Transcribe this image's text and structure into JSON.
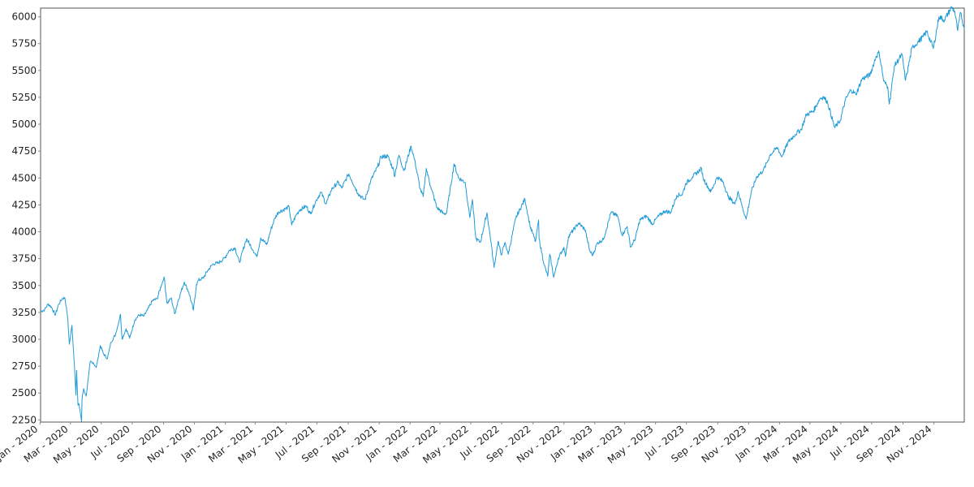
{
  "chart_data": {
    "type": "line",
    "title": "",
    "xlabel": "",
    "ylabel": "",
    "grid": false,
    "legend": "none",
    "x_range": [
      "2020-01-02",
      "2024-12-31"
    ],
    "ylim": [
      2230,
      6080
    ],
    "y_ticks": [
      2250,
      2500,
      2750,
      3000,
      3250,
      3500,
      3750,
      4000,
      4250,
      4500,
      4750,
      5000,
      5250,
      5500,
      5750,
      6000
    ],
    "x_ticks": [
      {
        "date": "2020-01-01",
        "label": "Jan - 2020"
      },
      {
        "date": "2020-03-01",
        "label": "Mar - 2020"
      },
      {
        "date": "2020-05-01",
        "label": "May - 2020"
      },
      {
        "date": "2020-07-01",
        "label": "Jul - 2020"
      },
      {
        "date": "2020-09-01",
        "label": "Sep - 2020"
      },
      {
        "date": "2020-11-01",
        "label": "Nov - 2020"
      },
      {
        "date": "2021-01-01",
        "label": "Jan - 2021"
      },
      {
        "date": "2021-03-01",
        "label": "Mar - 2021"
      },
      {
        "date": "2021-05-01",
        "label": "May - 2021"
      },
      {
        "date": "2021-07-01",
        "label": "Jul - 2021"
      },
      {
        "date": "2021-09-01",
        "label": "Sep - 2021"
      },
      {
        "date": "2021-11-01",
        "label": "Nov - 2021"
      },
      {
        "date": "2022-01-01",
        "label": "Jan - 2022"
      },
      {
        "date": "2022-03-01",
        "label": "Mar - 2022"
      },
      {
        "date": "2022-05-01",
        "label": "May - 2022"
      },
      {
        "date": "2022-07-01",
        "label": "Jul - 2022"
      },
      {
        "date": "2022-09-01",
        "label": "Sep - 2022"
      },
      {
        "date": "2022-11-01",
        "label": "Nov - 2022"
      },
      {
        "date": "2023-01-01",
        "label": "Jan - 2023"
      },
      {
        "date": "2023-03-01",
        "label": "Mar - 2023"
      },
      {
        "date": "2023-05-01",
        "label": "May - 2023"
      },
      {
        "date": "2023-07-01",
        "label": "Jul - 2023"
      },
      {
        "date": "2023-09-01",
        "label": "Sep - 2023"
      },
      {
        "date": "2023-11-01",
        "label": "Nov - 2023"
      },
      {
        "date": "2024-01-01",
        "label": "Jan - 2024"
      },
      {
        "date": "2024-03-01",
        "label": "Mar - 2024"
      },
      {
        "date": "2024-05-01",
        "label": "May - 2024"
      },
      {
        "date": "2024-07-01",
        "label": "Jul - 2024"
      },
      {
        "date": "2024-09-01",
        "label": "Sep - 2024"
      },
      {
        "date": "2024-11-01",
        "label": "Nov - 2024"
      }
    ],
    "series": [
      {
        "color": "#1f9bd7",
        "points": [
          [
            "2020-01-02",
            3258
          ],
          [
            "2020-01-10",
            3275
          ],
          [
            "2020-01-17",
            3330
          ],
          [
            "2020-01-24",
            3296
          ],
          [
            "2020-01-31",
            3225
          ],
          [
            "2020-02-07",
            3328
          ],
          [
            "2020-02-14",
            3380
          ],
          [
            "2020-02-19",
            3386
          ],
          [
            "2020-02-24",
            3226
          ],
          [
            "2020-02-28",
            2954
          ],
          [
            "2020-03-04",
            3130
          ],
          [
            "2020-03-09",
            2746
          ],
          [
            "2020-03-12",
            2480
          ],
          [
            "2020-03-13",
            2711
          ],
          [
            "2020-03-16",
            2386
          ],
          [
            "2020-03-18",
            2398
          ],
          [
            "2020-03-23",
            2237
          ],
          [
            "2020-03-24",
            2447
          ],
          [
            "2020-03-27",
            2541
          ],
          [
            "2020-04-01",
            2470
          ],
          [
            "2020-04-06",
            2663
          ],
          [
            "2020-04-09",
            2790
          ],
          [
            "2020-04-15",
            2783
          ],
          [
            "2020-04-21",
            2737
          ],
          [
            "2020-04-29",
            2940
          ],
          [
            "2020-05-05",
            2868
          ],
          [
            "2020-05-13",
            2820
          ],
          [
            "2020-05-20",
            2972
          ],
          [
            "2020-05-29",
            3044
          ],
          [
            "2020-06-08",
            3232
          ],
          [
            "2020-06-11",
            3002
          ],
          [
            "2020-06-19",
            3098
          ],
          [
            "2020-06-26",
            3009
          ],
          [
            "2020-07-06",
            3179
          ],
          [
            "2020-07-15",
            3226
          ],
          [
            "2020-07-24",
            3215
          ],
          [
            "2020-07-31",
            3271
          ],
          [
            "2020-08-10",
            3360
          ],
          [
            "2020-08-19",
            3375
          ],
          [
            "2020-08-28",
            3508
          ],
          [
            "2020-09-02",
            3580
          ],
          [
            "2020-09-08",
            3332
          ],
          [
            "2020-09-16",
            3385
          ],
          [
            "2020-09-23",
            3237
          ],
          [
            "2020-09-30",
            3363
          ],
          [
            "2020-10-12",
            3534
          ],
          [
            "2020-10-21",
            3435
          ],
          [
            "2020-10-30",
            3270
          ],
          [
            "2020-11-05",
            3510
          ],
          [
            "2020-11-09",
            3550
          ],
          [
            "2020-11-18",
            3567
          ],
          [
            "2020-11-27",
            3638
          ],
          [
            "2020-12-08",
            3702
          ],
          [
            "2020-12-18",
            3709
          ],
          [
            "2020-12-31",
            3756
          ],
          [
            "2021-01-08",
            3824
          ],
          [
            "2021-01-20",
            3851
          ],
          [
            "2021-01-29",
            3714
          ],
          [
            "2021-02-10",
            3909
          ],
          [
            "2021-02-12",
            3934
          ],
          [
            "2021-02-25",
            3829
          ],
          [
            "2021-03-04",
            3768
          ],
          [
            "2021-03-12",
            3943
          ],
          [
            "2021-03-24",
            3881
          ],
          [
            "2021-04-01",
            4019
          ],
          [
            "2021-04-09",
            4128
          ],
          [
            "2021-04-16",
            4185
          ],
          [
            "2021-04-29",
            4211
          ],
          [
            "2021-05-07",
            4232
          ],
          [
            "2021-05-12",
            4063
          ],
          [
            "2021-05-21",
            4155
          ],
          [
            "2021-05-28",
            4204
          ],
          [
            "2021-06-10",
            4239
          ],
          [
            "2021-06-18",
            4166
          ],
          [
            "2021-06-30",
            4297
          ],
          [
            "2021-07-09",
            4369
          ],
          [
            "2021-07-19",
            4258
          ],
          [
            "2021-07-30",
            4395
          ],
          [
            "2021-08-12",
            4460
          ],
          [
            "2021-08-19",
            4405
          ],
          [
            "2021-08-31",
            4522
          ],
          [
            "2021-09-02",
            4537
          ],
          [
            "2021-09-20",
            4358
          ],
          [
            "2021-09-30",
            4307
          ],
          [
            "2021-10-04",
            4300
          ],
          [
            "2021-10-15",
            4471
          ],
          [
            "2021-10-29",
            4605
          ],
          [
            "2021-11-05",
            4697
          ],
          [
            "2021-11-18",
            4704
          ],
          [
            "2021-11-30",
            4567
          ],
          [
            "2021-12-01",
            4513
          ],
          [
            "2021-12-10",
            4712
          ],
          [
            "2021-12-20",
            4568
          ],
          [
            "2022-01-03",
            4797
          ],
          [
            "2022-01-10",
            4670
          ],
          [
            "2022-01-21",
            4398
          ],
          [
            "2022-01-27",
            4326
          ],
          [
            "2022-02-02",
            4589
          ],
          [
            "2022-02-11",
            4418
          ],
          [
            "2022-02-23",
            4225
          ],
          [
            "2022-03-08",
            4170
          ],
          [
            "2022-03-14",
            4173
          ],
          [
            "2022-03-29",
            4631
          ],
          [
            "2022-04-07",
            4500
          ],
          [
            "2022-04-20",
            4459
          ],
          [
            "2022-04-29",
            4132
          ],
          [
            "2022-05-04",
            4300
          ],
          [
            "2022-05-11",
            3935
          ],
          [
            "2022-05-20",
            3901
          ],
          [
            "2022-06-02",
            4177
          ],
          [
            "2022-06-10",
            3901
          ],
          [
            "2022-06-16",
            3667
          ],
          [
            "2022-06-24",
            3912
          ],
          [
            "2022-06-30",
            3785
          ],
          [
            "2022-07-08",
            3899
          ],
          [
            "2022-07-14",
            3790
          ],
          [
            "2022-07-29",
            4130
          ],
          [
            "2022-08-16",
            4305
          ],
          [
            "2022-08-26",
            4057
          ],
          [
            "2022-09-06",
            3908
          ],
          [
            "2022-09-12",
            4110
          ],
          [
            "2022-09-13",
            3932
          ],
          [
            "2022-09-23",
            3693
          ],
          [
            "2022-09-30",
            3586
          ],
          [
            "2022-10-04",
            3791
          ],
          [
            "2022-10-12",
            3577
          ],
          [
            "2022-10-21",
            3753
          ],
          [
            "2022-11-01",
            3856
          ],
          [
            "2022-11-04",
            3771
          ],
          [
            "2022-11-10",
            3956
          ],
          [
            "2022-11-30",
            4080
          ],
          [
            "2022-12-13",
            4019
          ],
          [
            "2022-12-22",
            3822
          ],
          [
            "2022-12-28",
            3783
          ],
          [
            "2023-01-06",
            3895
          ],
          [
            "2023-01-18",
            3928
          ],
          [
            "2023-02-02",
            4179
          ],
          [
            "2023-02-15",
            4147
          ],
          [
            "2023-02-24",
            3970
          ],
          [
            "2023-03-06",
            4048
          ],
          [
            "2023-03-13",
            3855
          ],
          [
            "2023-03-22",
            3937
          ],
          [
            "2023-03-31",
            4109
          ],
          [
            "2023-04-13",
            4146
          ],
          [
            "2023-04-25",
            4072
          ],
          [
            "2023-05-05",
            4136
          ],
          [
            "2023-05-19",
            4192
          ],
          [
            "2023-05-31",
            4180
          ],
          [
            "2023-06-12",
            4338
          ],
          [
            "2023-06-23",
            4348
          ],
          [
            "2023-06-30",
            4450
          ],
          [
            "2023-07-13",
            4510
          ],
          [
            "2023-07-31",
            4589
          ],
          [
            "2023-08-03",
            4501
          ],
          [
            "2023-08-18",
            4370
          ],
          [
            "2023-08-31",
            4508
          ],
          [
            "2023-09-12",
            4461
          ],
          [
            "2023-09-21",
            4330
          ],
          [
            "2023-10-05",
            4258
          ],
          [
            "2023-10-11",
            4377
          ],
          [
            "2023-10-20",
            4224
          ],
          [
            "2023-10-27",
            4117
          ],
          [
            "2023-11-06",
            4366
          ],
          [
            "2023-11-17",
            4514
          ],
          [
            "2023-11-30",
            4568
          ],
          [
            "2023-12-14",
            4720
          ],
          [
            "2023-12-28",
            4783
          ],
          [
            "2024-01-05",
            4697
          ],
          [
            "2024-01-19",
            4840
          ],
          [
            "2024-02-01",
            4906
          ],
          [
            "2024-02-13",
            4953
          ],
          [
            "2024-02-23",
            5089
          ],
          [
            "2024-03-08",
            5124
          ],
          [
            "2024-03-21",
            5241
          ],
          [
            "2024-03-28",
            5254
          ],
          [
            "2024-04-05",
            5204
          ],
          [
            "2024-04-19",
            4967
          ],
          [
            "2024-04-30",
            5035
          ],
          [
            "2024-05-10",
            5223
          ],
          [
            "2024-05-21",
            5321
          ],
          [
            "2024-05-31",
            5277
          ],
          [
            "2024-06-12",
            5421
          ],
          [
            "2024-06-28",
            5460
          ],
          [
            "2024-07-10",
            5633
          ],
          [
            "2024-07-16",
            5667
          ],
          [
            "2024-07-25",
            5399
          ],
          [
            "2024-08-02",
            5346
          ],
          [
            "2024-08-05",
            5186
          ],
          [
            "2024-08-15",
            5543
          ],
          [
            "2024-08-30",
            5648
          ],
          [
            "2024-09-06",
            5408
          ],
          [
            "2024-09-19",
            5713
          ],
          [
            "2024-09-30",
            5762
          ],
          [
            "2024-10-11",
            5815
          ],
          [
            "2024-10-18",
            5864
          ],
          [
            "2024-10-31",
            5705
          ],
          [
            "2024-11-11",
            6001
          ],
          [
            "2024-11-22",
            5969
          ],
          [
            "2024-12-06",
            6090
          ],
          [
            "2024-12-12",
            6051
          ],
          [
            "2024-12-18",
            5872
          ],
          [
            "2024-12-24",
            6040
          ],
          [
            "2024-12-31",
            5882
          ]
        ]
      }
    ]
  }
}
